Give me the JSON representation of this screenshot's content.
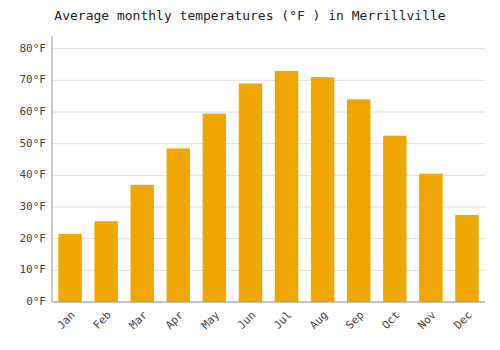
{
  "chart_data": {
    "type": "bar",
    "title": "Average monthly temperatures (°F ) in Merrillville",
    "categories": [
      "Jan",
      "Feb",
      "Mar",
      "Apr",
      "May",
      "Jun",
      "Jul",
      "Aug",
      "Sep",
      "Oct",
      "Nov",
      "Dec"
    ],
    "values": [
      21.5,
      25.5,
      37.0,
      48.5,
      59.5,
      69.0,
      73.0,
      71.0,
      64.0,
      52.5,
      40.5,
      27.5
    ],
    "color": "#F0A800",
    "ylim": [
      0,
      84
    ],
    "yticks": [
      {
        "value": 0,
        "label": "0°F"
      },
      {
        "value": 10,
        "label": "10°F"
      },
      {
        "value": 20,
        "label": "20°F"
      },
      {
        "value": 30,
        "label": "30°F"
      },
      {
        "value": 40,
        "label": "40°F"
      },
      {
        "value": 50,
        "label": "50°F"
      },
      {
        "value": 60,
        "label": "60°F"
      },
      {
        "value": 70,
        "label": "70°F"
      },
      {
        "value": 80,
        "label": "80°F"
      }
    ],
    "grid": true
  }
}
